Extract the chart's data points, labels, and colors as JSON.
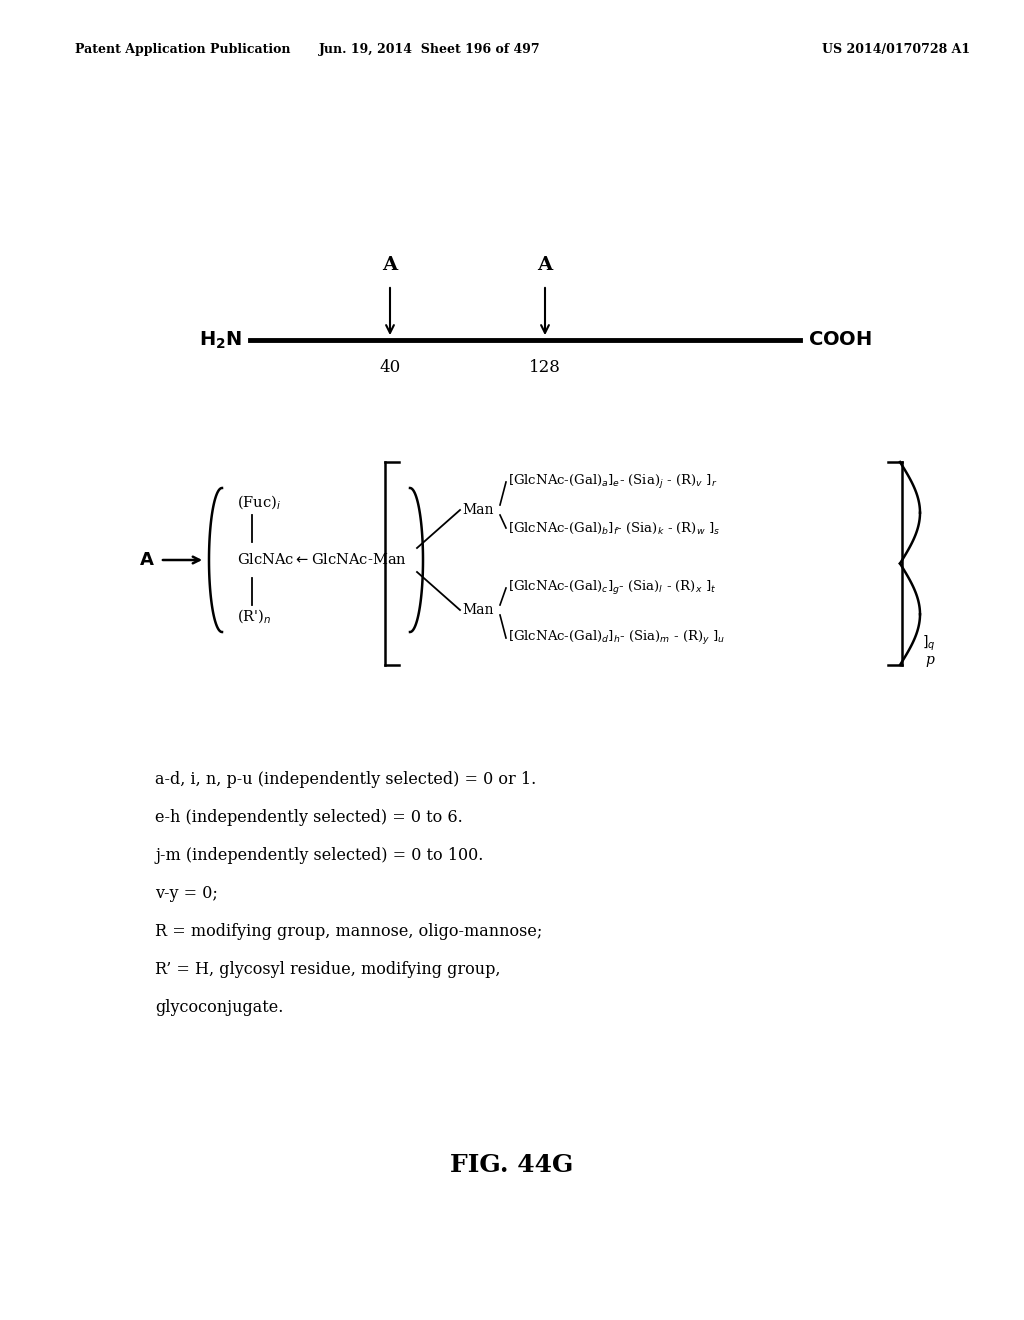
{
  "header_left": "Patent Application Publication",
  "header_mid": "Jun. 19, 2014  Sheet 196 of 497",
  "header_right": "US 2014/0170728 A1",
  "fig_label": "FIG. 44G",
  "description_lines": [
    "a-d, i, n, p-u (independently selected) = 0 or 1.",
    "e-h (independently selected) = 0 to 6.",
    "j-m (independently selected) = 0 to 100.",
    "v-y = 0;",
    "R = modifying group, mannose, oligo-mannose;",
    "R’ = H, glycosyl residue, modifying group,",
    "glycoconjugate."
  ],
  "background_color": "#ffffff",
  "text_color": "#000000"
}
